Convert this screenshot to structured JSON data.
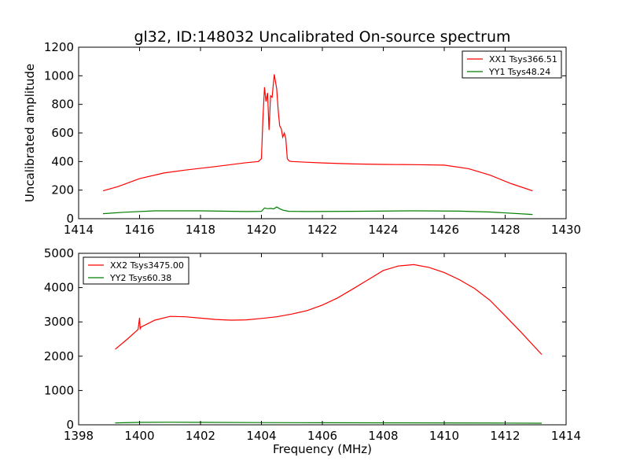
{
  "title": "gl32, ID:148032 Uncalibrated On-source spectrum",
  "chart_data": [
    {
      "type": "line",
      "ylabel": "Uncalibrated amplitude",
      "xlabel": "",
      "xlim": [
        1414,
        1430
      ],
      "ylim": [
        0,
        1200
      ],
      "xticks": [
        1414,
        1416,
        1418,
        1420,
        1422,
        1424,
        1426,
        1428,
        1430
      ],
      "yticks": [
        0,
        200,
        400,
        600,
        800,
        1000,
        1200
      ],
      "legend_position": "top-right",
      "series": [
        {
          "name": "XX1 Tsys366.51",
          "color": "#ff0000",
          "x": [
            1414.8,
            1415.3,
            1416.0,
            1416.8,
            1417.5,
            1418.5,
            1419.5,
            1419.9,
            1420.0,
            1420.05,
            1420.1,
            1420.15,
            1420.2,
            1420.25,
            1420.3,
            1420.35,
            1420.42,
            1420.5,
            1420.55,
            1420.6,
            1420.65,
            1420.7,
            1420.75,
            1420.8,
            1420.85,
            1420.9,
            1420.95,
            1421.0,
            1421.2,
            1422.0,
            1423.0,
            1424.0,
            1425.0,
            1426.0,
            1426.8,
            1427.5,
            1428.2,
            1428.9
          ],
          "y": [
            195,
            225,
            280,
            320,
            340,
            365,
            392,
            400,
            420,
            700,
            920,
            820,
            880,
            620,
            860,
            850,
            1010,
            910,
            760,
            650,
            630,
            570,
            600,
            560,
            420,
            405,
            402,
            400,
            398,
            390,
            383,
            380,
            378,
            375,
            350,
            305,
            245,
            195
          ]
        },
        {
          "name": "YY1 Tsys48.24",
          "color": "#007f00",
          "x": [
            1414.8,
            1415.5,
            1416.5,
            1418.0,
            1419.5,
            1420.0,
            1420.1,
            1420.2,
            1420.3,
            1420.4,
            1420.5,
            1420.6,
            1420.7,
            1420.9,
            1421.5,
            1423.0,
            1425.0,
            1426.5,
            1427.5,
            1428.9
          ],
          "y": [
            35,
            45,
            55,
            55,
            50,
            52,
            75,
            70,
            72,
            68,
            82,
            70,
            60,
            52,
            50,
            52,
            55,
            53,
            47,
            30
          ]
        }
      ]
    },
    {
      "type": "line",
      "ylabel": "",
      "xlabel": "Frequency (MHz)",
      "xlim": [
        1398,
        1414
      ],
      "ylim": [
        0,
        5000
      ],
      "xticks": [
        1398,
        1400,
        1402,
        1404,
        1406,
        1408,
        1410,
        1412,
        1414
      ],
      "yticks": [
        0,
        1000,
        2000,
        3000,
        4000,
        5000
      ],
      "legend_position": "top-left",
      "series": [
        {
          "name": "XX2 Tsys3475.00",
          "color": "#ff0000",
          "x": [
            1399.2,
            1399.6,
            1399.95,
            1400.0,
            1400.02,
            1400.05,
            1400.5,
            1401.0,
            1401.5,
            1402.0,
            1402.5,
            1403.0,
            1403.5,
            1404.0,
            1404.5,
            1405.0,
            1405.5,
            1406.0,
            1406.5,
            1407.0,
            1407.5,
            1408.0,
            1408.5,
            1409.0,
            1409.5,
            1410.0,
            1410.5,
            1411.0,
            1411.5,
            1412.0,
            1412.5,
            1413.2
          ],
          "y": [
            2200,
            2500,
            2780,
            3120,
            2800,
            2850,
            3050,
            3160,
            3150,
            3110,
            3070,
            3050,
            3060,
            3100,
            3150,
            3230,
            3330,
            3490,
            3700,
            3960,
            4230,
            4500,
            4630,
            4670,
            4590,
            4440,
            4230,
            3970,
            3630,
            3180,
            2720,
            2050
          ]
        },
        {
          "name": "YY2 Tsys60.38",
          "color": "#007f00",
          "x": [
            1399.2,
            1400.0,
            1401.0,
            1402.0,
            1404.0,
            1406.0,
            1408.0,
            1410.0,
            1412.0,
            1413.2
          ],
          "y": [
            55,
            70,
            75,
            72,
            65,
            60,
            58,
            55,
            50,
            45
          ]
        }
      ]
    }
  ]
}
